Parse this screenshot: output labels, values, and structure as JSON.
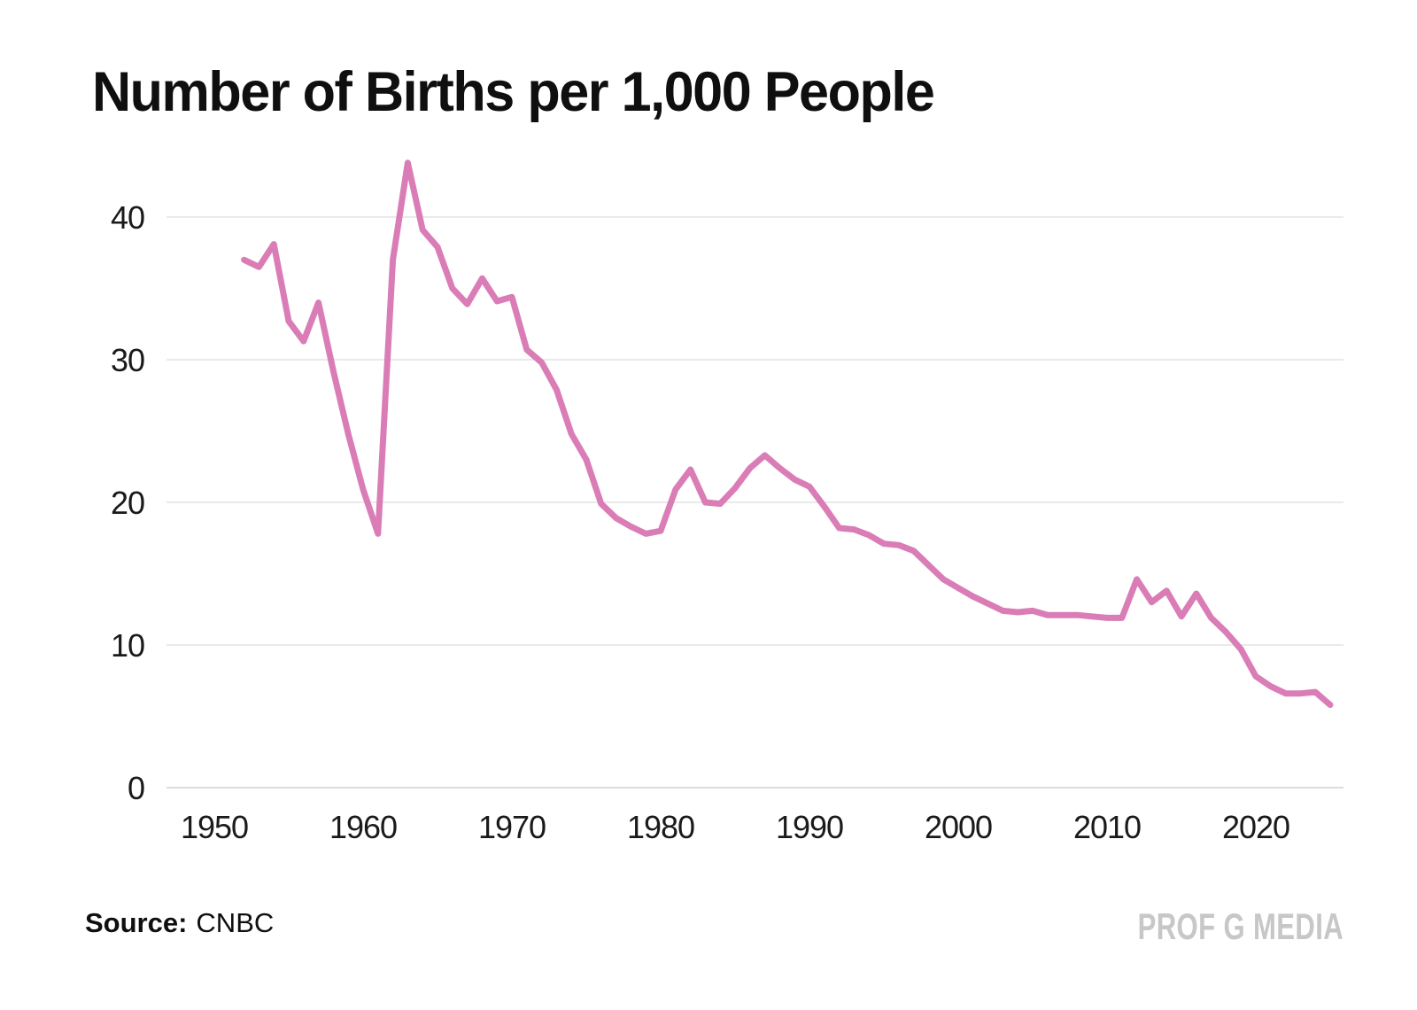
{
  "title": "Number of Births per 1,000 People",
  "source": {
    "label": "Source:",
    "value": "CNBC"
  },
  "watermark": "PROF G MEDIA",
  "colors": {
    "line": "#da7db7",
    "gridline": "#eaeaea",
    "axis_line": "#dcdcdc",
    "tick_text": "#1a1a1a",
    "title_text": "#0f0f0f",
    "watermark_text": "#c7c7c7",
    "background": "#ffffff"
  },
  "chart_data": {
    "type": "line",
    "title": "Number of Births per 1,000 People",
    "xlabel": "",
    "ylabel": "",
    "legend": "none",
    "grid": "horizontal",
    "xlim": [
      1946.8,
      2026
    ],
    "ylim": [
      0,
      44.5
    ],
    "x_ticks": [
      1950,
      1960,
      1970,
      1980,
      1990,
      2000,
      2010,
      2020
    ],
    "y_ticks": [
      0,
      10,
      20,
      30,
      40
    ],
    "series_name": "Births per 1,000 people",
    "x": [
      1952,
      1953,
      1954,
      1955,
      1956,
      1957,
      1958,
      1959,
      1960,
      1961,
      1962,
      1963,
      1964,
      1965,
      1966,
      1967,
      1968,
      1969,
      1970,
      1971,
      1972,
      1973,
      1974,
      1975,
      1976,
      1977,
      1978,
      1979,
      1980,
      1981,
      1982,
      1983,
      1984,
      1985,
      1986,
      1987,
      1988,
      1989,
      1990,
      1991,
      1992,
      1993,
      1994,
      1995,
      1996,
      1997,
      1998,
      1999,
      2000,
      2001,
      2002,
      2003,
      2004,
      2005,
      2006,
      2007,
      2008,
      2009,
      2010,
      2011,
      2012,
      2013,
      2014,
      2015,
      2016,
      2017,
      2018,
      2019,
      2020,
      2021,
      2022,
      2023,
      2024,
      2025
    ],
    "y": [
      37.0,
      36.5,
      38.1,
      32.7,
      31.3,
      34.0,
      29.2,
      24.8,
      20.9,
      17.8,
      37.0,
      43.8,
      39.1,
      37.9,
      35.0,
      33.9,
      35.7,
      34.1,
      34.4,
      30.7,
      29.8,
      27.9,
      24.8,
      23.0,
      19.9,
      18.9,
      18.3,
      17.8,
      18.0,
      20.9,
      22.3,
      20.0,
      19.9,
      21.0,
      22.4,
      23.3,
      22.4,
      21.6,
      21.1,
      19.7,
      18.2,
      18.1,
      17.7,
      17.1,
      17.0,
      16.6,
      15.6,
      14.6,
      14.0,
      13.4,
      12.9,
      12.4,
      12.3,
      12.4,
      12.1,
      12.1,
      12.1,
      12.0,
      11.9,
      11.9,
      14.6,
      13.0,
      13.8,
      12.0,
      13.6,
      11.9,
      10.9,
      9.7,
      7.8,
      7.1,
      6.6,
      6.6,
      6.7,
      5.8
    ]
  }
}
